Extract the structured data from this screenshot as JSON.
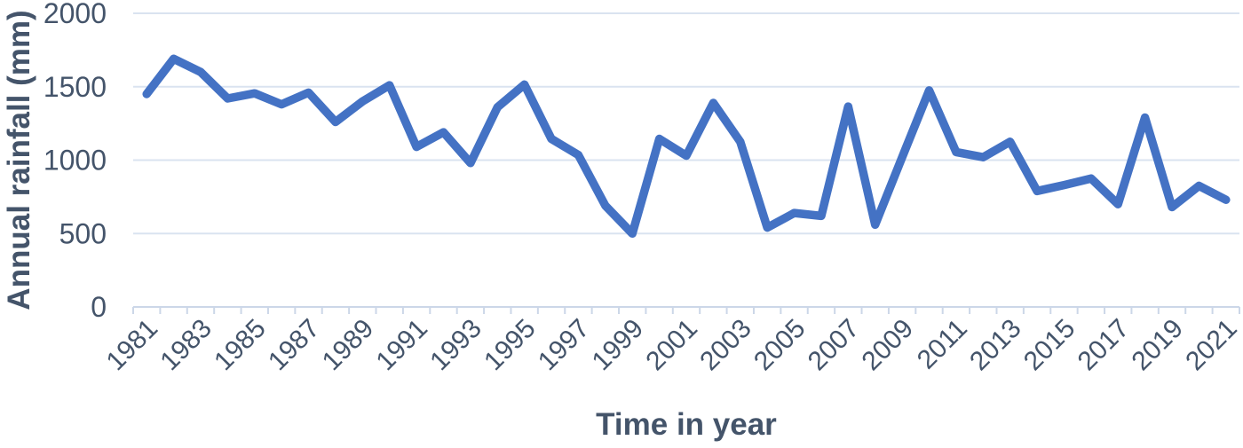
{
  "chart_data": {
    "type": "line",
    "title": "",
    "xlabel": "Time in year",
    "ylabel": "Annual rainfall (mm)",
    "categories": [
      "1981",
      "1982",
      "1983",
      "1984",
      "1985",
      "1986",
      "1987",
      "1988",
      "1989",
      "1990",
      "1991",
      "1992",
      "1993",
      "1994",
      "1995",
      "1996",
      "1997",
      "1998",
      "1999",
      "2000",
      "2001",
      "2002",
      "2003",
      "2004",
      "2005",
      "2006",
      "2007",
      "2008",
      "2009",
      "2010",
      "2011",
      "2012",
      "2013",
      "2014",
      "2015",
      "2016",
      "2017",
      "2018",
      "2019",
      "2020",
      "2021"
    ],
    "series": [
      {
        "name": "Annual rainfall (mm)",
        "values": [
          1450,
          1690,
          1600,
          1420,
          1455,
          1380,
          1460,
          1260,
          1400,
          1510,
          1090,
          1190,
          980,
          1360,
          1515,
          1145,
          1035,
          690,
          500,
          1145,
          1030,
          1390,
          1125,
          540,
          640,
          620,
          1365,
          560,
          1020,
          1475,
          1055,
          1020,
          1125,
          790,
          830,
          875,
          700,
          1290,
          680,
          825,
          730
        ]
      }
    ],
    "ylim": [
      0,
      2000
    ],
    "yticks": [
      0,
      500,
      1000,
      1500,
      2000
    ],
    "x_tick_labels": [
      "1981",
      "1983",
      "1985",
      "1987",
      "1989",
      "1991",
      "1993",
      "1995",
      "1997",
      "1999",
      "2001",
      "2003",
      "2005",
      "2007",
      "2009",
      "2011",
      "2013",
      "2015",
      "2017",
      "2019",
      "2021"
    ],
    "x_tick_label_every": 2,
    "grid": "horizontal",
    "legend_position": "none",
    "line_color": "#4472C4",
    "axis_text_color": "#44546A",
    "gridline_color": "#dae3f0",
    "axis_line_color": "#ccd7e8"
  }
}
